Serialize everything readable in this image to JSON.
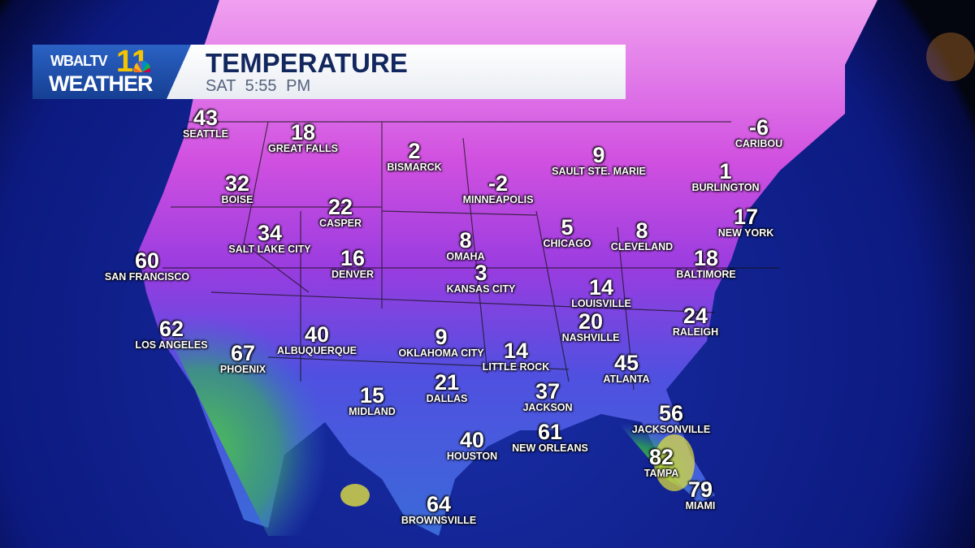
{
  "header": {
    "brand_line1": "WBALTV",
    "brand_number": "11",
    "brand_line2": "WEATHER",
    "title": "TEMPERATURE",
    "day": "SAT",
    "time": "5:55 PM"
  },
  "colors": {
    "cold": "#e07ae0",
    "cool": "#8a3de0",
    "mild": "#3a50d8",
    "warm": "#3cc24a",
    "hot": "#e6e23a",
    "ocean": "#0a1a8a"
  },
  "cities": [
    {
      "name": "SEATTLE",
      "temp": "43"
    },
    {
      "name": "GREAT FALLS",
      "temp": "18"
    },
    {
      "name": "BISMARCK",
      "temp": "2"
    },
    {
      "name": "MINNEAPOLIS",
      "temp": "-2"
    },
    {
      "name": "SAULT STE. MARIE",
      "temp": "9"
    },
    {
      "name": "CARIBOU",
      "temp": "-6"
    },
    {
      "name": "BURLINGTON",
      "temp": "1"
    },
    {
      "name": "NEW YORK",
      "temp": "17"
    },
    {
      "name": "BOISE",
      "temp": "32"
    },
    {
      "name": "CASPER",
      "temp": "22"
    },
    {
      "name": "SALT LAKE CITY",
      "temp": "34"
    },
    {
      "name": "OMAHA",
      "temp": "8"
    },
    {
      "name": "CHICAGO",
      "temp": "5"
    },
    {
      "name": "CLEVELAND",
      "temp": "8"
    },
    {
      "name": "SAN FRANCISCO",
      "temp": "60"
    },
    {
      "name": "DENVER",
      "temp": "16"
    },
    {
      "name": "KANSAS CITY",
      "temp": "3"
    },
    {
      "name": "BALTIMORE",
      "temp": "18"
    },
    {
      "name": "LOUISVILLE",
      "temp": "14"
    },
    {
      "name": "RALEIGH",
      "temp": "24"
    },
    {
      "name": "NASHVILLE",
      "temp": "20"
    },
    {
      "name": "LOS ANGELES",
      "temp": "62"
    },
    {
      "name": "ALBUQUERQUE",
      "temp": "40"
    },
    {
      "name": "OKLAHOMA CITY",
      "temp": "9"
    },
    {
      "name": "PHOENIX",
      "temp": "67"
    },
    {
      "name": "LITTLE ROCK",
      "temp": "14"
    },
    {
      "name": "ATLANTA",
      "temp": "45"
    },
    {
      "name": "DALLAS",
      "temp": "21"
    },
    {
      "name": "JACKSON",
      "temp": "37"
    },
    {
      "name": "MIDLAND",
      "temp": "15"
    },
    {
      "name": "JACKSONVILLE",
      "temp": "56"
    },
    {
      "name": "NEW ORLEANS",
      "temp": "61"
    },
    {
      "name": "HOUSTON",
      "temp": "40"
    },
    {
      "name": "TAMPA",
      "temp": "82"
    },
    {
      "name": "MIAMI",
      "temp": "79"
    },
    {
      "name": "BROWNSVILLE",
      "temp": "64"
    }
  ]
}
